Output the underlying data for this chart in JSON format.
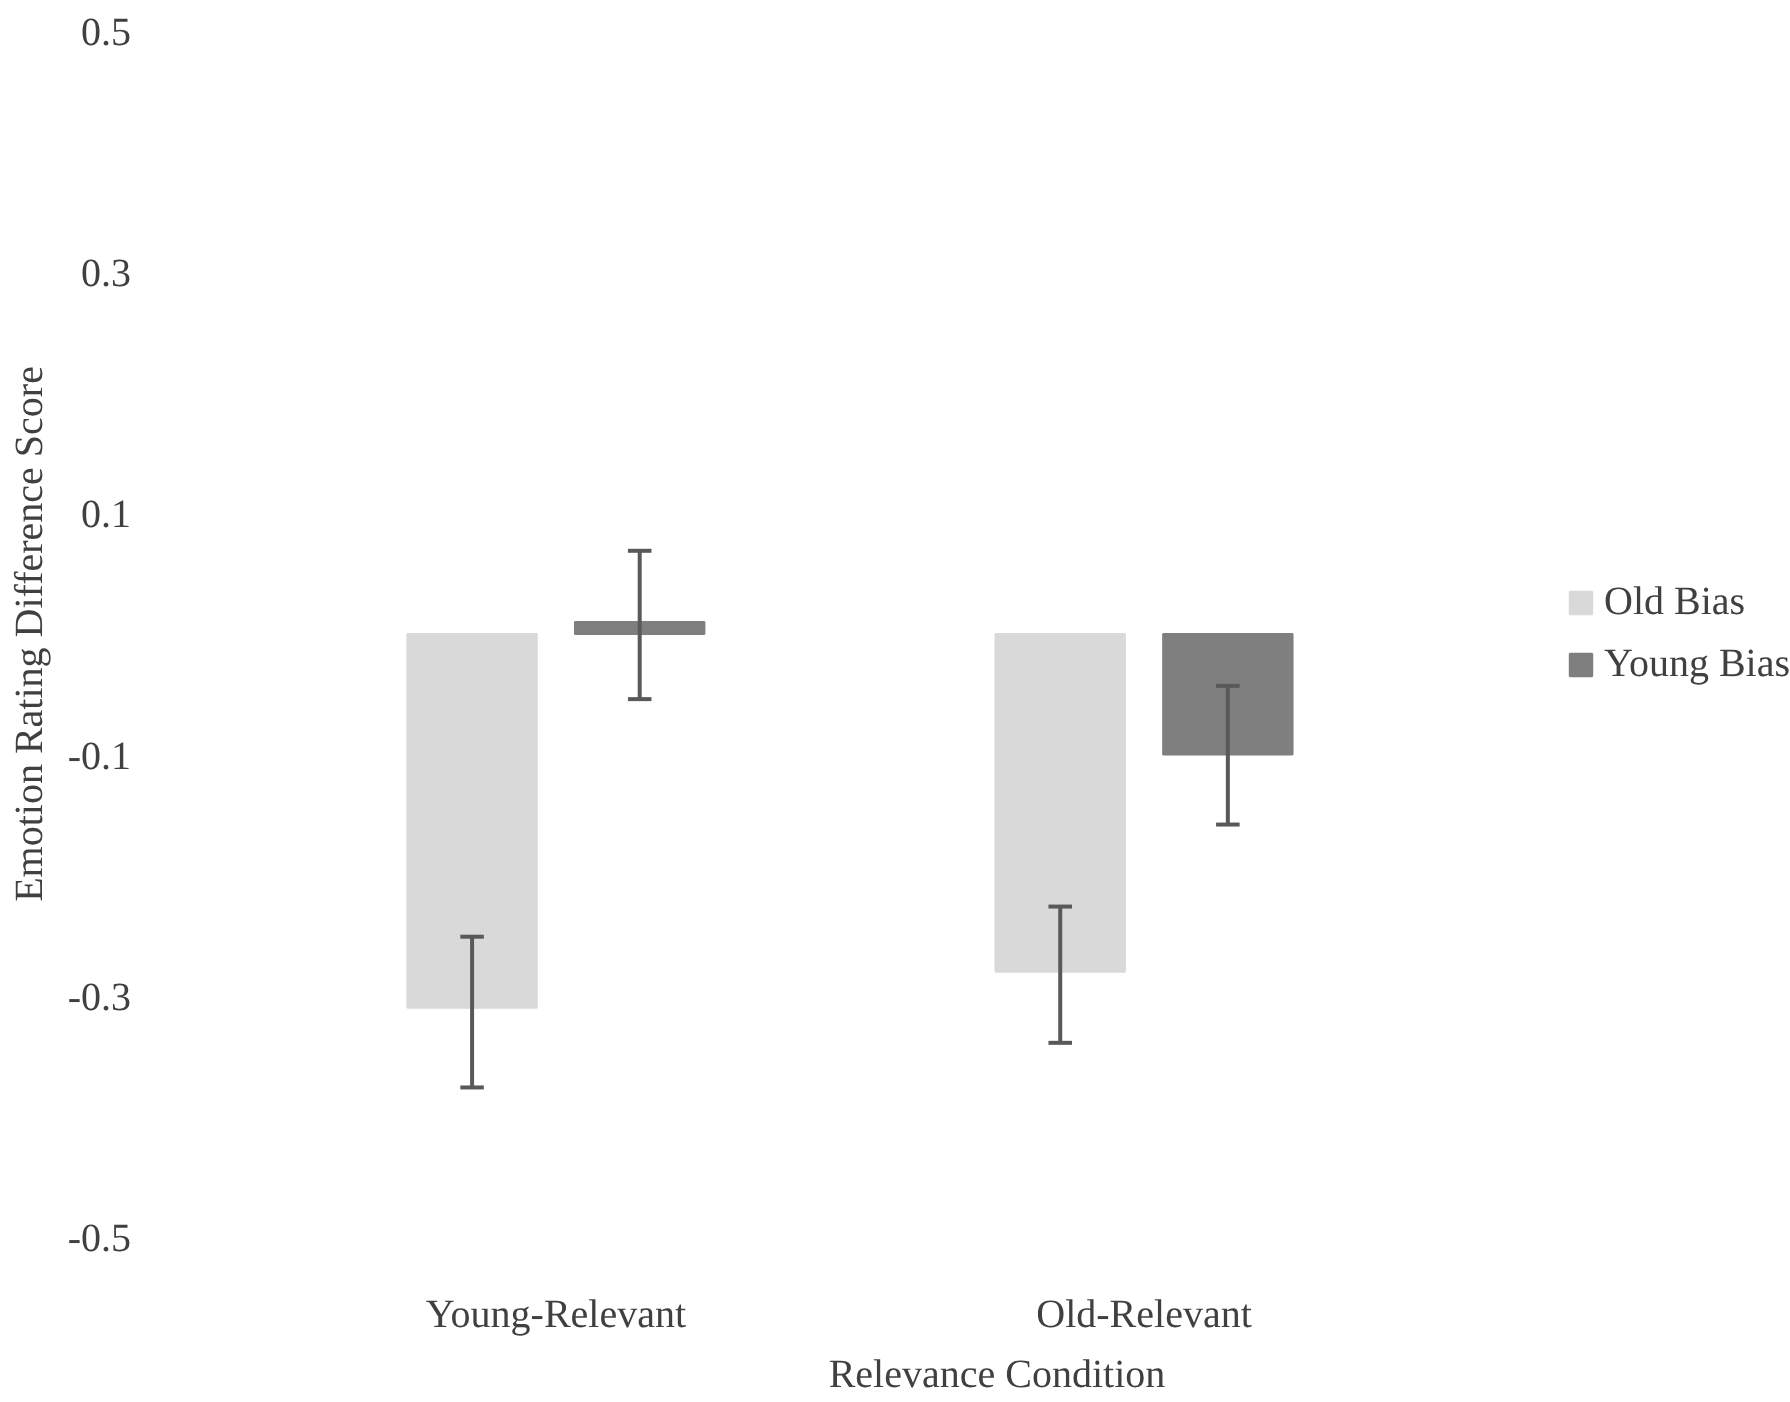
{
  "chart_data": {
    "type": "bar",
    "xlabel": "Relevance Condition",
    "ylabel": "Emotion Rating Difference Score",
    "categories": [
      "Young-Relevant",
      "Old-Relevant"
    ],
    "series": [
      {
        "name": "Old Bias",
        "color": "#d9d9d9",
        "values": [
          -0.31,
          -0.28
        ],
        "errors": [
          [
            -0.376,
            -0.251
          ],
          [
            -0.339,
            -0.226
          ]
        ]
      },
      {
        "name": "Young Bias",
        "color": "#7f7f7f",
        "values": [
          0.01,
          -0.1
        ],
        "errors": [
          [
            -0.054,
            0.069
          ],
          [
            -0.158,
            -0.043
          ]
        ]
      }
    ],
    "ylim": [
      -0.5,
      0.5
    ],
    "yticks": [
      -0.5,
      -0.3,
      -0.1,
      0.1,
      0.3,
      0.5
    ],
    "grid": false,
    "legend": "right"
  }
}
